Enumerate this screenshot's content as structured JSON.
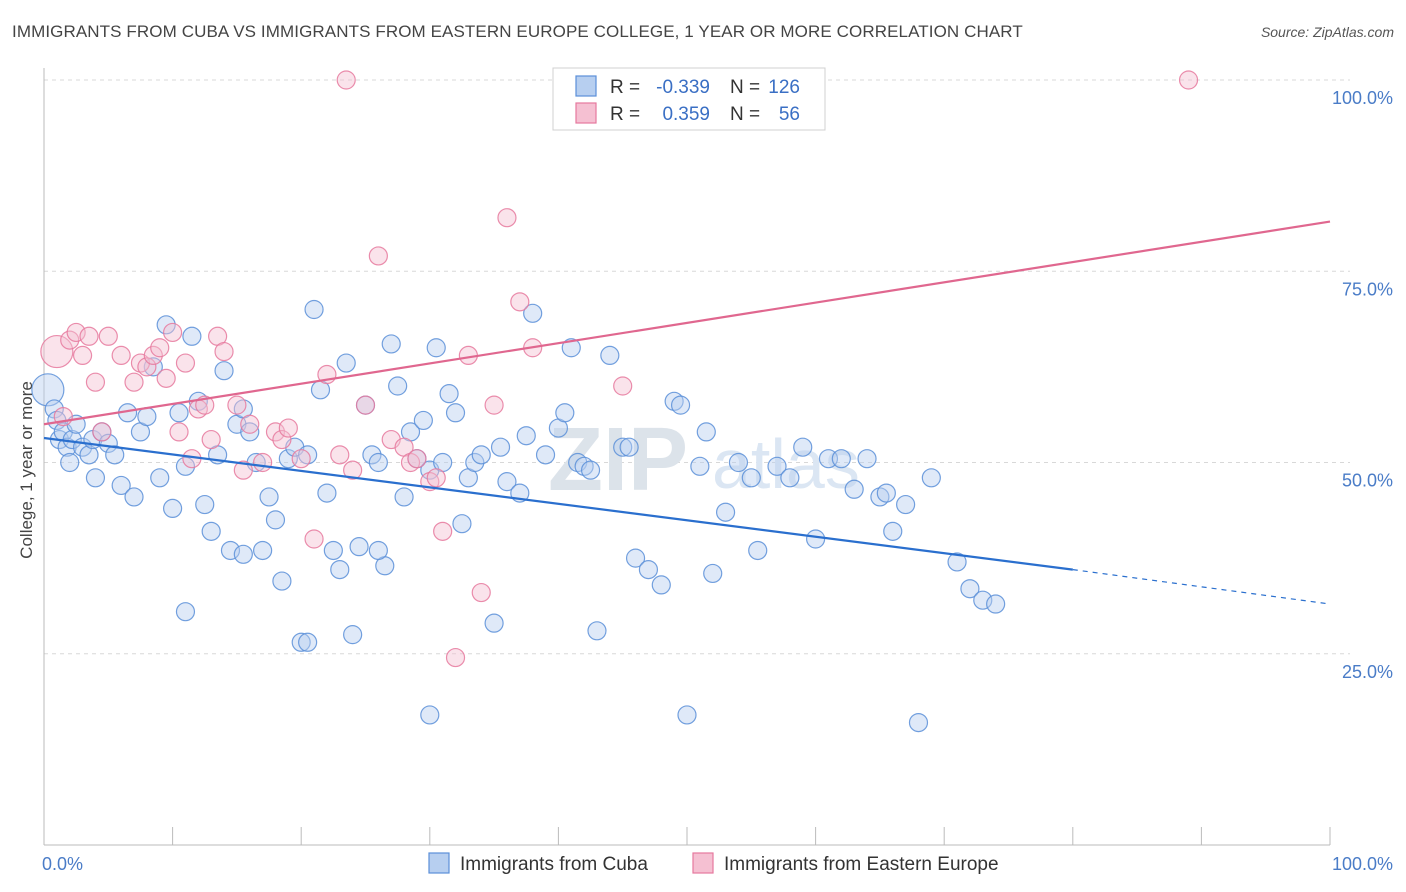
{
  "title": "IMMIGRANTS FROM CUBA VS IMMIGRANTS FROM EASTERN EUROPE COLLEGE, 1 YEAR OR MORE CORRELATION CHART",
  "source": "Source: ZipAtlas.com",
  "watermark": {
    "zip": "ZIP",
    "atlas": "atlas"
  },
  "colors": {
    "cuba": "#5b8fd8",
    "cuba_fill": "#b7cff0",
    "cuba_line": "#2a6fce",
    "eeurope": "#e6799e",
    "eeurope_fill": "#f5c0d2",
    "eeurope_line": "#e0678f",
    "tick_label": "#4a7cc7",
    "grid": "#d8d8d8"
  },
  "legend_stats": [
    {
      "r_label": "R =",
      "r_value": "-0.339",
      "n_label": "N =",
      "n_value": "126"
    },
    {
      "r_label": "R =",
      "r_value": "0.359",
      "n_label": "N =",
      "n_value": "56"
    }
  ],
  "chart_data": {
    "type": "scatter",
    "title": "IMMIGRANTS FROM CUBA VS IMMIGRANTS FROM EASTERN EUROPE COLLEGE, 1 YEAR OR MORE CORRELATION CHART",
    "xlabel": "",
    "ylabel": "College, 1 year or more",
    "xlim": [
      0,
      100
    ],
    "ylim": [
      0,
      100
    ],
    "x_tick_labels": [
      "0.0%",
      "100.0%"
    ],
    "y_tick_labels": [
      "25.0%",
      "50.0%",
      "75.0%",
      "100.0%"
    ],
    "y_ticks": [
      25,
      50,
      75,
      100
    ],
    "grid": true,
    "legend_position": "bottom",
    "series": [
      {
        "name": "Immigrants from Cuba",
        "r": -0.339,
        "n": 126,
        "trend": {
          "x": [
            0,
            80,
            100
          ],
          "y": [
            53.2,
            36,
            31.5
          ],
          "solid_until": 80
        },
        "points": [
          [
            0.3,
            59.5
          ],
          [
            0.8,
            57
          ],
          [
            1,
            55.5
          ],
          [
            1.2,
            53
          ],
          [
            1.5,
            54
          ],
          [
            1.8,
            52
          ],
          [
            2,
            50
          ],
          [
            2.2,
            53
          ],
          [
            2.5,
            55
          ],
          [
            3,
            52
          ],
          [
            3.5,
            51
          ],
          [
            3.8,
            53
          ],
          [
            4,
            48
          ],
          [
            4.5,
            54
          ],
          [
            5,
            52.5
          ],
          [
            5.5,
            51
          ],
          [
            6,
            47
          ],
          [
            6.5,
            56.5
          ],
          [
            7,
            45.5
          ],
          [
            7.5,
            54
          ],
          [
            8,
            56
          ],
          [
            8.5,
            62.5
          ],
          [
            9,
            48
          ],
          [
            9.5,
            68
          ],
          [
            10,
            44
          ],
          [
            10.5,
            56.5
          ],
          [
            11,
            49.5
          ],
          [
            11.5,
            66.5
          ],
          [
            12,
            58
          ],
          [
            12.5,
            44.5
          ],
          [
            13,
            41
          ],
          [
            13.5,
            51
          ],
          [
            14,
            62
          ],
          [
            14.5,
            38.5
          ],
          [
            15,
            55
          ],
          [
            15.5,
            57
          ],
          [
            16,
            54
          ],
          [
            16.5,
            50
          ],
          [
            17,
            38.5
          ],
          [
            17.5,
            45.5
          ],
          [
            18,
            42.5
          ],
          [
            18.5,
            34.5
          ],
          [
            19,
            50.5
          ],
          [
            19.5,
            52
          ],
          [
            20,
            26.5
          ],
          [
            20.5,
            51
          ],
          [
            21,
            70
          ],
          [
            21.5,
            59.5
          ],
          [
            22,
            46
          ],
          [
            22.5,
            38.5
          ],
          [
            23,
            36
          ],
          [
            23.5,
            63
          ],
          [
            24,
            27.5
          ],
          [
            24.5,
            39
          ],
          [
            25,
            57.5
          ],
          [
            25.5,
            51
          ],
          [
            26,
            50
          ],
          [
            26.5,
            36.5
          ],
          [
            27,
            65.5
          ],
          [
            27.5,
            60
          ],
          [
            28,
            45.5
          ],
          [
            28.5,
            54
          ],
          [
            29,
            50.5
          ],
          [
            29.5,
            55.5
          ],
          [
            30,
            49
          ],
          [
            30.5,
            65
          ],
          [
            31,
            50
          ],
          [
            31.5,
            59
          ],
          [
            32,
            56.5
          ],
          [
            32.5,
            42
          ],
          [
            33,
            48
          ],
          [
            33.5,
            50
          ],
          [
            34,
            51
          ],
          [
            35,
            29
          ],
          [
            35.5,
            52
          ],
          [
            36,
            47.5
          ],
          [
            37,
            46
          ],
          [
            37.5,
            53.5
          ],
          [
            38,
            69.5
          ],
          [
            39,
            51
          ],
          [
            40,
            54.5
          ],
          [
            40.5,
            56.5
          ],
          [
            41,
            65
          ],
          [
            41.5,
            50
          ],
          [
            42,
            49.5
          ],
          [
            42.5,
            49
          ],
          [
            43,
            28
          ],
          [
            44,
            64
          ],
          [
            45,
            52
          ],
          [
            45.5,
            52
          ],
          [
            46,
            37.5
          ],
          [
            47,
            36
          ],
          [
            48,
            34
          ],
          [
            49,
            58
          ],
          [
            49.5,
            57.5
          ],
          [
            50,
            17
          ],
          [
            51,
            49.5
          ],
          [
            51.5,
            54
          ],
          [
            52,
            35.5
          ],
          [
            53,
            43.5
          ],
          [
            54,
            50
          ],
          [
            55,
            48
          ],
          [
            55.5,
            38.5
          ],
          [
            57,
            49.5
          ],
          [
            58,
            48
          ],
          [
            59,
            52
          ],
          [
            60,
            40
          ],
          [
            61,
            50.5
          ],
          [
            62,
            50.5
          ],
          [
            63,
            46.5
          ],
          [
            64,
            50.5
          ],
          [
            65,
            45.5
          ],
          [
            65.5,
            46
          ],
          [
            66,
            41
          ],
          [
            67,
            44.5
          ],
          [
            68,
            16
          ],
          [
            69,
            48
          ],
          [
            71,
            37
          ],
          [
            72,
            33.5
          ],
          [
            73,
            32
          ],
          [
            74,
            31.5
          ],
          [
            30,
            17
          ],
          [
            26,
            38.5
          ],
          [
            11,
            30.5
          ],
          [
            15.5,
            38
          ],
          [
            20.5,
            26.5
          ]
        ]
      },
      {
        "name": "Immigrants from Eastern Europe",
        "r": 0.359,
        "n": 56,
        "trend": {
          "x": [
            0,
            100
          ],
          "y": [
            55,
            81.5
          ]
        },
        "points": [
          [
            1,
            64.5
          ],
          [
            1.5,
            56
          ],
          [
            2,
            66
          ],
          [
            2.5,
            67
          ],
          [
            3,
            64
          ],
          [
            3.5,
            66.5
          ],
          [
            4,
            60.5
          ],
          [
            4.5,
            54
          ],
          [
            5,
            66.5
          ],
          [
            6,
            64
          ],
          [
            7,
            60.5
          ],
          [
            7.5,
            63
          ],
          [
            8,
            62.5
          ],
          [
            8.5,
            64
          ],
          [
            9,
            65
          ],
          [
            9.5,
            61
          ],
          [
            10,
            67
          ],
          [
            10.5,
            54
          ],
          [
            11,
            63
          ],
          [
            11.5,
            50.5
          ],
          [
            12,
            57
          ],
          [
            12.5,
            57.5
          ],
          [
            13,
            53
          ],
          [
            13.5,
            66.5
          ],
          [
            14,
            64.5
          ],
          [
            15,
            57.5
          ],
          [
            15.5,
            49
          ],
          [
            16,
            55
          ],
          [
            17,
            50
          ],
          [
            18,
            54
          ],
          [
            18.5,
            53
          ],
          [
            19,
            54.5
          ],
          [
            20,
            50.5
          ],
          [
            21,
            40
          ],
          [
            22,
            61.5
          ],
          [
            23,
            51
          ],
          [
            23.5,
            100
          ],
          [
            24,
            49
          ],
          [
            25,
            57.5
          ],
          [
            26,
            77
          ],
          [
            27,
            53
          ],
          [
            28,
            52
          ],
          [
            28.5,
            50
          ],
          [
            29,
            50.5
          ],
          [
            30,
            47.5
          ],
          [
            30.5,
            48
          ],
          [
            31,
            41
          ],
          [
            32,
            24.5
          ],
          [
            33,
            64
          ],
          [
            34,
            33
          ],
          [
            35,
            57.5
          ],
          [
            36,
            82
          ],
          [
            37,
            71
          ],
          [
            38,
            65
          ],
          [
            45,
            60
          ],
          [
            89,
            100
          ]
        ]
      }
    ]
  },
  "bottom_legend": [
    {
      "label": "Immigrants from Cuba"
    },
    {
      "label": "Immigrants from Eastern Europe"
    }
  ]
}
